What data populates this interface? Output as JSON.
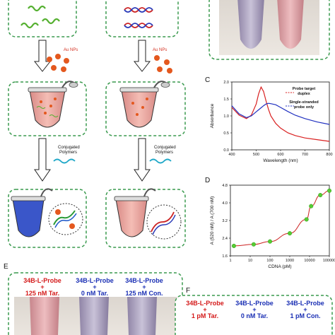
{
  "labels": {
    "au_nps_left": "Au NPs",
    "au_nps_right": "Au NPs",
    "conj_left": [
      "Conjugated",
      "Polymers"
    ],
    "conj_right": [
      "Conjugated",
      "Polymers"
    ]
  },
  "panel_letters": {
    "c": "C",
    "d": "D",
    "e": "E",
    "f": "F"
  },
  "colors": {
    "box_green": "#3a9a4e",
    "probe_red": "#d41a1a",
    "probe_blue": "#1a2fb4",
    "au_np": "#e4581e",
    "tube_fill": "#f1a9a1",
    "curve_red": "#d92020",
    "curve_blue": "#2030c0",
    "fit_red": "#cc2222",
    "point_green": "#55cc33"
  },
  "panel_e": {
    "columns": [
      {
        "lines": [
          "34B-L-Probe",
          "+",
          "125 nM Tar."
        ],
        "color": "red"
      },
      {
        "lines": [
          "34B-L-Probe",
          "+",
          "0 nM Tar."
        ],
        "color": "blue"
      },
      {
        "lines": [
          "34B-L-Probe",
          "+",
          "125 nM Con."
        ],
        "color": "blue"
      }
    ]
  },
  "panel_f": {
    "columns": [
      {
        "lines": [
          "34B-L-Probe",
          "+",
          "1 pM Tar."
        ],
        "color": "red"
      },
      {
        "lines": [
          "34B-L-Probe",
          "+",
          "0 nM Tar."
        ],
        "color": "blue"
      },
      {
        "lines": [
          "34B-L-Probe",
          "+",
          "1 pM Con."
        ],
        "color": "blue"
      }
    ]
  },
  "chart_data": [
    {
      "id": "C",
      "type": "line",
      "xlabel": "Wavelength  (nm)",
      "ylabel": "Absorbance",
      "xlim": [
        400,
        800
      ],
      "ylim": [
        0.0,
        2.0
      ],
      "xticks": [
        "400",
        "500",
        "600",
        "700",
        "800"
      ],
      "yticks": [
        "0.0",
        "0.5",
        "1.0",
        "1.5",
        "2.0"
      ],
      "x": [
        400,
        430,
        460,
        480,
        500,
        510,
        520,
        530,
        540,
        550,
        560,
        580,
        600,
        630,
        660,
        700,
        750,
        800
      ],
      "series": [
        {
          "name": "Probe target duplex",
          "color": "red",
          "values": [
            1.25,
            1.02,
            0.92,
            1.02,
            1.35,
            1.65,
            1.85,
            1.72,
            1.45,
            1.2,
            1.0,
            0.78,
            0.64,
            0.5,
            0.42,
            0.35,
            0.3,
            0.25
          ]
        },
        {
          "name": "Single-stranded probe only",
          "color": "blue",
          "values": [
            1.3,
            1.06,
            0.95,
            1.0,
            1.12,
            1.18,
            1.24,
            1.3,
            1.35,
            1.37,
            1.36,
            1.33,
            1.25,
            1.13,
            1.02,
            0.92,
            0.82,
            0.75
          ]
        }
      ],
      "legend": [
        "Probe target",
        "duplex",
        "Single-stranded",
        "probe only"
      ]
    },
    {
      "id": "D",
      "type": "scatter",
      "xlabel": "CDNA  (pM)",
      "ylabel": "A (520 nM) / A (700 nM)",
      "xscale": "log",
      "xlim": [
        1,
        100000
      ],
      "ylim": [
        1.6,
        4.8
      ],
      "xticks": [
        "1",
        "10",
        "100",
        "1000",
        "10000",
        "100000"
      ],
      "yticks": [
        "1.6",
        "2.4",
        "3.2",
        "4.0",
        "4.8"
      ],
      "points": [
        {
          "x": 1.5,
          "y": 2.05
        },
        {
          "x": 15,
          "y": 2.12
        },
        {
          "x": 100,
          "y": 2.25
        },
        {
          "x": 1000,
          "y": 2.62
        },
        {
          "x": 7000,
          "y": 3.25
        },
        {
          "x": 12000,
          "y": 3.85
        },
        {
          "x": 35000,
          "y": 4.35
        },
        {
          "x": 100000,
          "y": 4.55
        }
      ]
    }
  ]
}
